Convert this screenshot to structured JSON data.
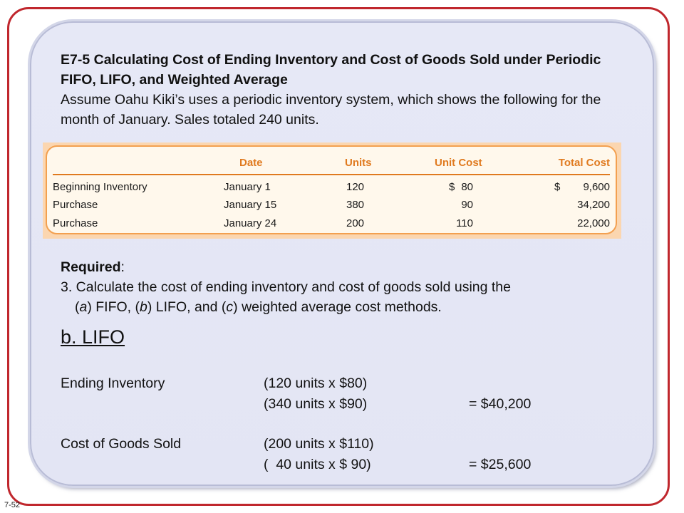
{
  "slide_number": "7-52",
  "title": "E7-5 Calculating Cost of Ending Inventory and Cost of Goods Sold under Periodic FIFO, LIFO, and Weighted Average",
  "intro": "Assume Oahu Kiki’s uses a periodic inventory system, which shows the following for the month of January. Sales totaled 240 units.",
  "table": {
    "headers": {
      "date": "Date",
      "units": "Units",
      "unit_cost": "Unit Cost",
      "total_cost": "Total Cost"
    },
    "rows": [
      {
        "label": "Beginning Inventory",
        "date": "January 1",
        "units": "120",
        "unit_cost_symbol": "$",
        "unit_cost": "80",
        "total_cost_symbol": "$",
        "total_cost": "9,600"
      },
      {
        "label": "Purchase",
        "date": "January 15",
        "units": "380",
        "unit_cost_symbol": "",
        "unit_cost": "90",
        "total_cost_symbol": "",
        "total_cost": "34,200"
      },
      {
        "label": "Purchase",
        "date": "January 24",
        "units": "200",
        "unit_cost_symbol": "",
        "unit_cost": "110",
        "total_cost_symbol": "",
        "total_cost": "22,000"
      }
    ]
  },
  "required": {
    "label": "Required",
    "colon": ":",
    "item_prefix": "3. Calculate the cost of ending inventory and cost of goods sold using the",
    "item_a_open": "(",
    "item_a_letter": "a",
    "item_a_text": ") FIFO, (",
    "item_b_letter": "b",
    "item_b_text": ") LIFO, and (",
    "item_c_letter": "c",
    "item_c_text": ") weighted average cost methods."
  },
  "solution": {
    "heading": "b. LIFO",
    "ending_inventory": {
      "label": "Ending Inventory",
      "line1": "(120 units x $80)",
      "line2": "(340 units x $90)",
      "result": "= $40,200"
    },
    "cogs": {
      "label": "Cost of Goods Sold",
      "line1": "(200 units x $110)",
      "line2": "(  40 units x $ 90)",
      "result": "= $25,600"
    }
  }
}
